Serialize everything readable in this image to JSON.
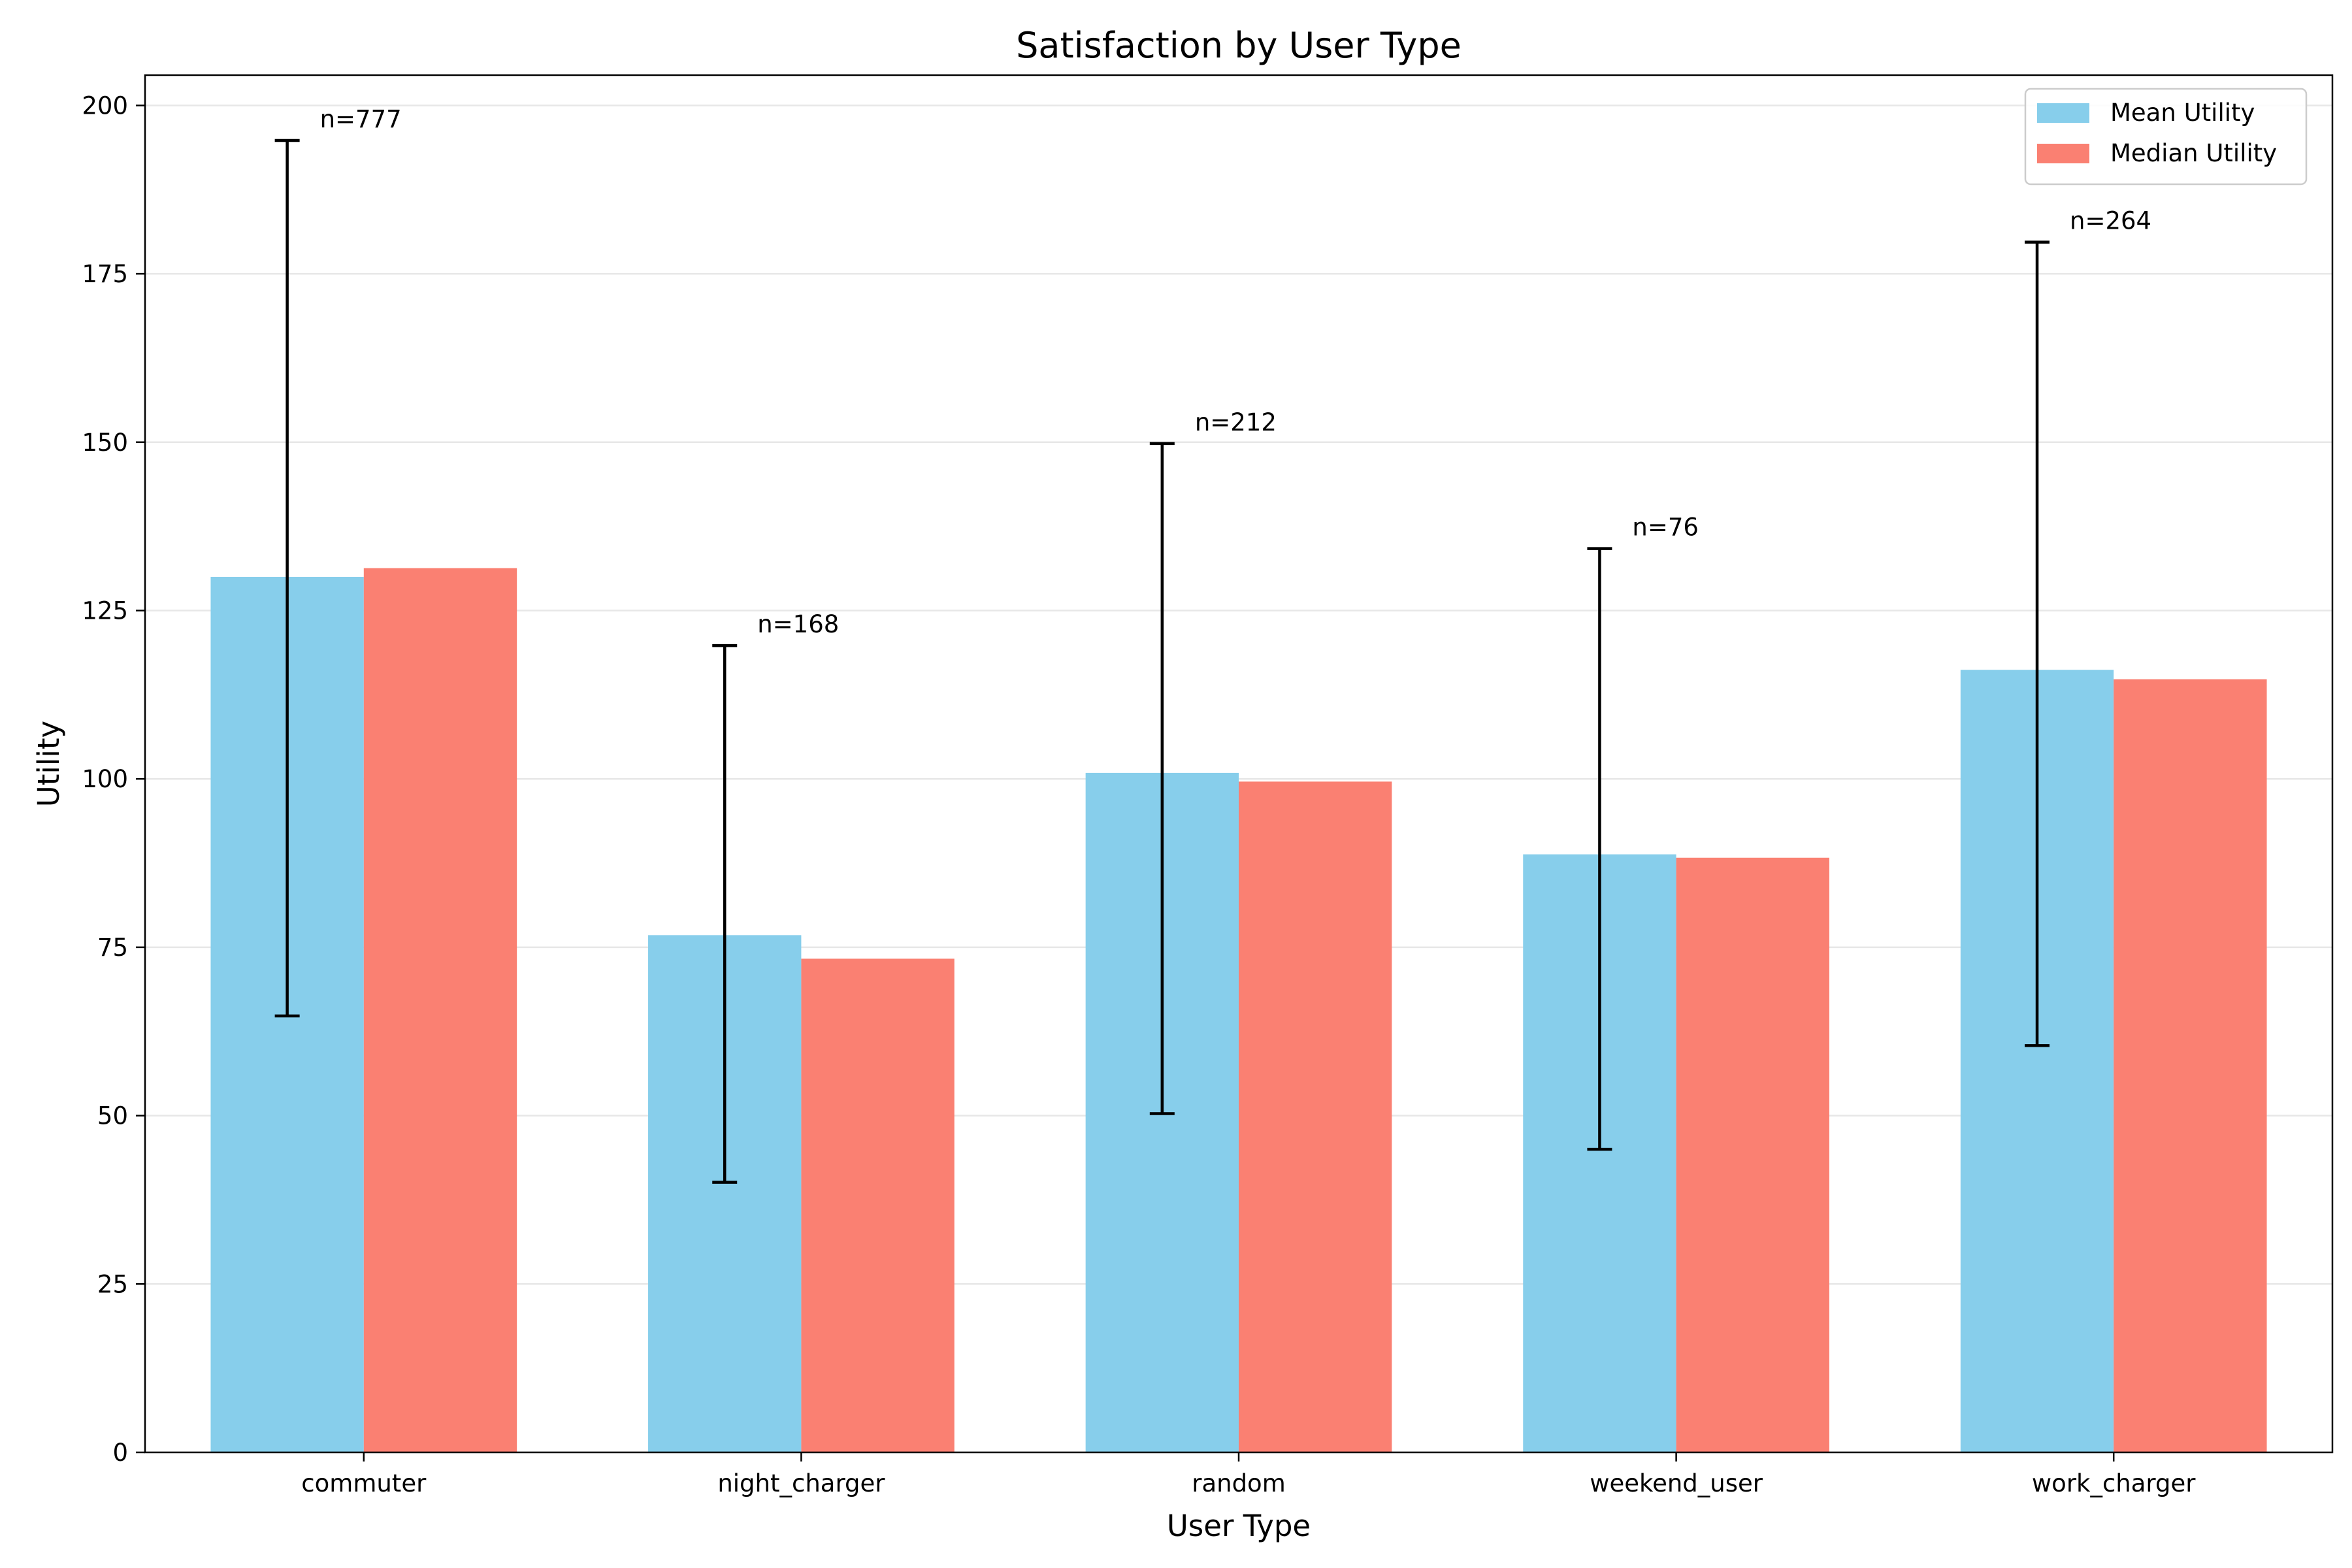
{
  "chart_data": {
    "type": "bar",
    "title": "Satisfaction by User Type",
    "xlabel": "User Type",
    "ylabel": "Utility",
    "ylim": [
      0,
      204.5
    ],
    "yticks": [
      0,
      25,
      50,
      75,
      100,
      125,
      150,
      175,
      200
    ],
    "grid": "horizontal",
    "legend_position": "top-right",
    "categories": [
      "commuter",
      "night_charger",
      "random",
      "weekend_user",
      "work_charger"
    ],
    "series": [
      {
        "name": "Mean Utility",
        "color": "#87CEEB",
        "values": [
          130.0,
          76.8,
          100.9,
          88.8,
          116.2
        ],
        "error_low": [
          64.8,
          40.1,
          50.3,
          45.0,
          60.4
        ],
        "error_high": [
          194.8,
          119.8,
          149.8,
          134.2,
          179.7
        ]
      },
      {
        "name": "Median Utility",
        "color": "#FA8072",
        "values": [
          131.3,
          73.3,
          99.6,
          88.3,
          114.8
        ]
      }
    ],
    "annotations": [
      "n=777",
      "n=168",
      "n=212",
      "n=76",
      "n=264"
    ]
  }
}
